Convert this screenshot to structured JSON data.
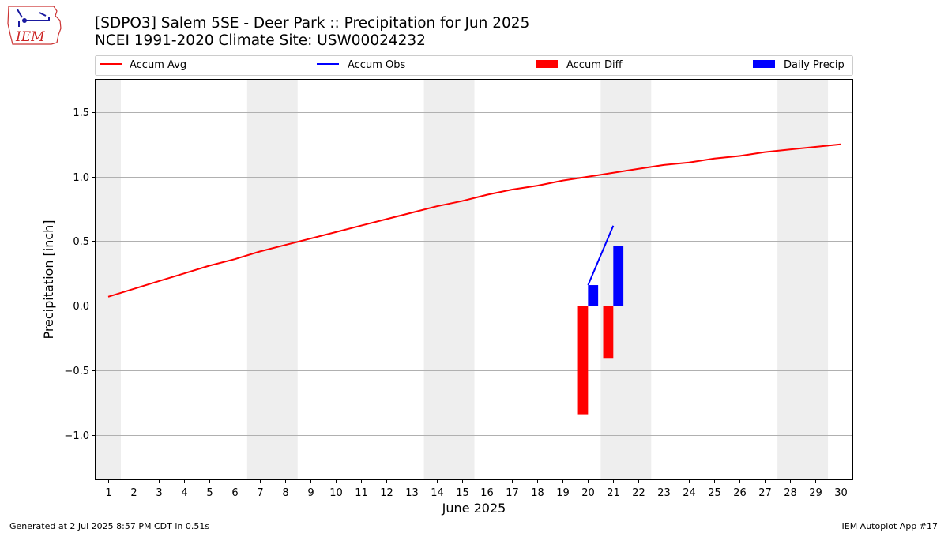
{
  "header": {
    "title_line1": "[SDPO3] Salem 5SE - Deer Park :: Precipitation for Jun 2025",
    "title_line2": "NCEI 1991-2020 Climate Site: USW00024232",
    "logo_text": "IEM"
  },
  "footer": {
    "left": "Generated at 2 Jul 2025 8:57 PM CDT in 0.51s",
    "right": "IEM Autoplot App #17"
  },
  "chart_data": {
    "type": "line",
    "xlabel": "June 2025",
    "ylabel": "Precipitation [inch]",
    "ylim": [
      -1.35,
      1.75
    ],
    "xlim": [
      0.5,
      30.5
    ],
    "x_ticks": [
      1,
      2,
      3,
      4,
      5,
      6,
      7,
      8,
      9,
      10,
      11,
      12,
      13,
      14,
      15,
      16,
      17,
      18,
      19,
      20,
      21,
      22,
      23,
      24,
      25,
      26,
      27,
      28,
      29,
      30
    ],
    "y_ticks": [
      -1.0,
      -0.5,
      0.0,
      0.5,
      1.0,
      1.5
    ],
    "y_tick_labels": [
      "−1.0",
      "−0.5",
      "0.0",
      "0.5",
      "1.0",
      "1.5"
    ],
    "grid": "horizontal",
    "weekend_shading": [
      [
        0.5,
        1.5
      ],
      [
        6.5,
        8.5
      ],
      [
        13.5,
        15.5
      ],
      [
        20.5,
        22.5
      ],
      [
        27.5,
        29.5
      ]
    ],
    "legend_position": "top",
    "series": [
      {
        "name": "Accum Avg",
        "kind": "line",
        "color": "#ff0000",
        "x": [
          1,
          2,
          3,
          4,
          5,
          6,
          7,
          8,
          9,
          10,
          11,
          12,
          13,
          14,
          15,
          16,
          17,
          18,
          19,
          20,
          21,
          22,
          23,
          24,
          25,
          26,
          27,
          28,
          29,
          30
        ],
        "values": [
          0.07,
          0.13,
          0.19,
          0.25,
          0.31,
          0.36,
          0.42,
          0.47,
          0.52,
          0.57,
          0.62,
          0.67,
          0.72,
          0.77,
          0.81,
          0.86,
          0.9,
          0.93,
          0.97,
          1.0,
          1.03,
          1.06,
          1.09,
          1.11,
          1.14,
          1.16,
          1.19,
          1.21,
          1.23,
          1.25
        ]
      },
      {
        "name": "Accum Obs",
        "kind": "line",
        "color": "#0000ff",
        "x": [
          20,
          21
        ],
        "values": [
          0.16,
          0.62
        ]
      },
      {
        "name": "Accum Diff",
        "kind": "bar",
        "color": "#ff0000",
        "x": [
          20,
          21
        ],
        "values": [
          -0.84,
          -0.41
        ]
      },
      {
        "name": "Daily Precip",
        "kind": "bar",
        "color": "#0000ff",
        "x": [
          20,
          21
        ],
        "values": [
          0.16,
          0.46
        ]
      }
    ]
  }
}
